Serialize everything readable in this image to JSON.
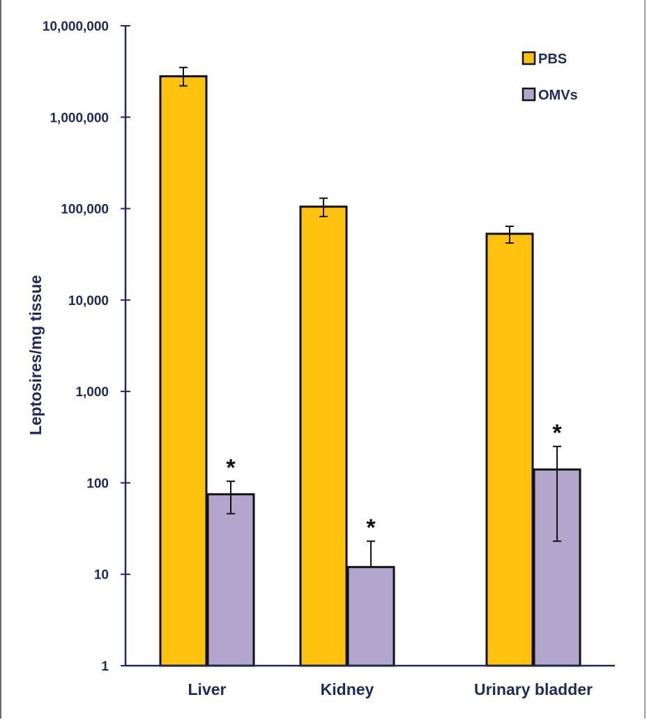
{
  "chart_data": {
    "type": "bar",
    "scale": "log",
    "ylabel": "Leptosires/mg tissue",
    "xlabel": "",
    "ylim": [
      1,
      10000000
    ],
    "y_ticks": [
      1,
      10,
      100,
      1000,
      10000,
      100000,
      1000000,
      10000000
    ],
    "y_tick_labels": [
      "1",
      "10",
      "100",
      "1,000",
      "10,000",
      "100,000",
      "1,000,000",
      "10,000,000"
    ],
    "categories": [
      "Liver",
      "Kidney",
      "Urinary bladder"
    ],
    "series": [
      {
        "name": "PBS",
        "color": "#FFC20E",
        "values": [
          2800000,
          105000,
          53000
        ],
        "error_low": [
          2200000,
          82000,
          42000
        ],
        "error_high": [
          3500000,
          130000,
          64000
        ]
      },
      {
        "name": "OMVs",
        "color": "#B3A6CC",
        "values": [
          75,
          12,
          140
        ],
        "error_low": [
          46,
          12,
          23
        ],
        "error_high": [
          104,
          23,
          250
        ],
        "annotations": [
          "*",
          "*",
          "*"
        ]
      }
    ],
    "legend_position": "top-right",
    "grid": false
  },
  "colors": {
    "axis": "#1f2a5c",
    "bar_outline": "#111111",
    "error_bar": "#111111"
  }
}
